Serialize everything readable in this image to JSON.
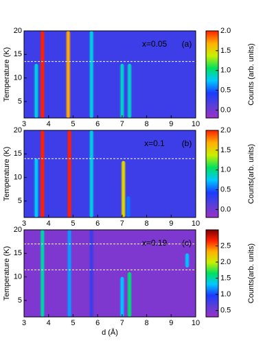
{
  "chart_data": [
    {
      "type": "heatmap",
      "label": "x=0.05",
      "panel": "(a)",
      "ylabel": "Temperature (K)",
      "xlim": [
        3,
        10
      ],
      "xticks": [
        3,
        4,
        5,
        6,
        7,
        8,
        9,
        10
      ],
      "ylim": [
        1.5,
        20
      ],
      "yticks": [
        5,
        10,
        15,
        20
      ],
      "clim": [
        -0.2,
        2.0
      ],
      "cticks": [
        {
          "value": 0,
          "label": "0.0"
        },
        0.5,
        {
          "value": 1,
          "label": "1.0"
        },
        1.5,
        {
          "value": 2,
          "label": "2.0"
        }
      ],
      "colorbar_label": "Counts (arb. units)",
      "colormap": [
        "#9b30c8",
        "#5a3fd8",
        "#1a3cff",
        "#00c8ff",
        "#00e060",
        "#c8f000",
        "#ffb000",
        "#ff2000"
      ],
      "background_counts": 0.25,
      "dashed_lines": [
        13.5
      ],
      "peaks": [
        {
          "d": 3.5,
          "t_range": [
            1.5,
            13
          ],
          "counts": 0.8
        },
        {
          "d": 3.75,
          "t_range": [
            1.5,
            20
          ],
          "counts": 2.0
        },
        {
          "d": 4.8,
          "t_range": [
            1.5,
            20
          ],
          "counts": 1.7
        },
        {
          "d": 5.75,
          "t_range": [
            1.5,
            20
          ],
          "counts": 0.8
        },
        {
          "d": 7.0,
          "t_range": [
            1.5,
            13
          ],
          "counts": 0.85
        },
        {
          "d": 7.3,
          "t_range": [
            1.5,
            13
          ],
          "counts": 0.85
        }
      ]
    },
    {
      "type": "heatmap",
      "label": "x=0.1",
      "panel": "(b)",
      "ylabel": "Temperature (K)",
      "xlim": [
        3,
        10
      ],
      "xticks": [
        3,
        4,
        5,
        6,
        7,
        8,
        9,
        10
      ],
      "ylim": [
        1.5,
        20
      ],
      "yticks": [
        5,
        10,
        15,
        20
      ],
      "clim": [
        -0.2,
        2.0
      ],
      "cticks": [
        {
          "value": 0,
          "label": "0.0"
        },
        0.5,
        {
          "value": 1,
          "label": "1.0"
        },
        1.5,
        {
          "value": 2,
          "label": "2.0"
        }
      ],
      "colorbar_label": "Counts(arb. units)",
      "colormap": [
        "#9b30c8",
        "#5a3fd8",
        "#1a3cff",
        "#00c8ff",
        "#00e060",
        "#c8f000",
        "#ffb000",
        "#ff2000"
      ],
      "background_counts": 0.25,
      "dashed_lines": [
        14
      ],
      "peaks": [
        {
          "d": 3.5,
          "t_range": [
            1.5,
            14
          ],
          "counts": 0.75
        },
        {
          "d": 3.75,
          "t_range": [
            1.5,
            20
          ],
          "counts": 2.0
        },
        {
          "d": 4.85,
          "t_range": [
            1.5,
            20
          ],
          "counts": 2.0
        },
        {
          "d": 5.75,
          "t_range": [
            1.5,
            20
          ],
          "counts": 0.8
        },
        {
          "d": 7.05,
          "t_range": [
            1.5,
            13.5
          ],
          "counts": 1.5
        },
        {
          "d": 7.25,
          "t_range": [
            1.5,
            6
          ],
          "counts": 0.55
        }
      ]
    },
    {
      "type": "heatmap",
      "label": "x=0.19",
      "panel": "(c)",
      "ylabel": "Temperature (K)",
      "xlabel": "d (Å)",
      "xlim": [
        3,
        10
      ],
      "xticks": [
        3,
        4,
        5,
        6,
        7,
        8,
        9,
        10
      ],
      "ylim": [
        1.5,
        20
      ],
      "yticks": [
        5,
        10,
        15,
        20
      ],
      "clim": [
        0.3,
        3.0
      ],
      "cticks": [
        0.5,
        {
          "value": 1,
          "label": "1.0"
        },
        1.5,
        {
          "value": 2,
          "label": "2.0"
        },
        2.5
      ],
      "colorbar_label": "Counts(arb. units)",
      "colormap": [
        "#9b30c8",
        "#5a3fd8",
        "#1a3cff",
        "#00c8ff",
        "#00e060",
        "#c8f000",
        "#ffb000",
        "#ff2000",
        "#800000"
      ],
      "background_counts": 0.45,
      "dashed_lines": [
        17,
        11.5
      ],
      "peaks": [
        {
          "d": 3.75,
          "t_range": [
            1.5,
            20
          ],
          "counts": 1.5
        },
        {
          "d": 4.85,
          "t_range": [
            1.5,
            20
          ],
          "counts": 1.2
        },
        {
          "d": 5.75,
          "t_range": [
            1.5,
            20
          ],
          "counts": 0.8
        },
        {
          "d": 7.0,
          "t_range": [
            1.5,
            10
          ],
          "counts": 1.3
        },
        {
          "d": 7.3,
          "t_range": [
            1.5,
            11
          ],
          "counts": 1.6
        },
        {
          "d": 9.65,
          "t_range": [
            12,
            15
          ],
          "counts": 1.3
        }
      ]
    }
  ]
}
